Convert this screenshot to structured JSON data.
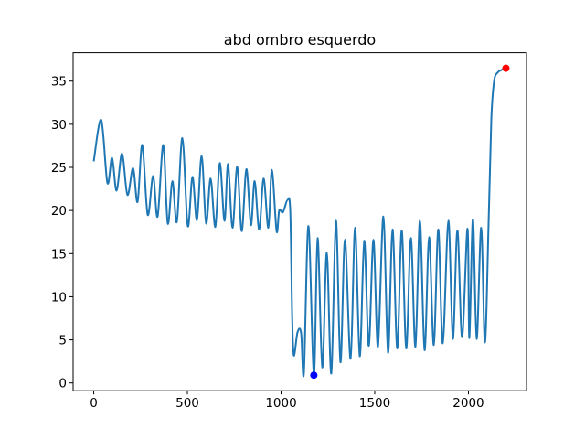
{
  "chart_data": {
    "type": "line",
    "title": "abd ombro esquerdo",
    "x": [
      0,
      40,
      73,
      98,
      122,
      151,
      180,
      210,
      234,
      259,
      288,
      317,
      341,
      371,
      395,
      420,
      444,
      473,
      502,
      527,
      551,
      576,
      600,
      624,
      649,
      673,
      698,
      717,
      741,
      766,
      790,
      815,
      839,
      859,
      883,
      907,
      932,
      951,
      976,
      990,
      1010,
      1034,
      1049,
      1059,
      1068,
      1088,
      1107,
      1122,
      1146,
      1175,
      1195,
      1220,
      1244,
      1268,
      1293,
      1317,
      1341,
      1371,
      1395,
      1420,
      1444,
      1468,
      1493,
      1517,
      1546,
      1571,
      1595,
      1620,
      1644,
      1668,
      1693,
      1717,
      1741,
      1766,
      1790,
      1815,
      1839,
      1863,
      1893,
      1917,
      1941,
      1966,
      1995,
      2005,
      2024,
      2044,
      2068,
      2088,
      2107,
      2122,
      2137,
      2156,
      2176,
      2200
    ],
    "series": [
      {
        "color": "#1f77b4",
        "values": [
          25.7,
          30.5,
          23.2,
          26.1,
          22.3,
          26.6,
          21.8,
          24.9,
          21.0,
          27.6,
          19.5,
          24.0,
          19.3,
          27.6,
          18.5,
          23.4,
          18.7,
          28.4,
          18.2,
          23.9,
          18.9,
          26.3,
          18.5,
          23.7,
          18.1,
          25.5,
          18.8,
          25.4,
          18.0,
          25.1,
          17.6,
          24.8,
          18.3,
          23.4,
          17.8,
          23.7,
          18.0,
          24.7,
          17.6,
          20.0,
          19.8,
          21.2,
          20.0,
          8.0,
          3.2,
          5.9,
          5.8,
          1.2,
          18.2,
          0.9,
          16.8,
          1.8,
          15.1,
          1.1,
          18.8,
          2.4,
          16.6,
          2.8,
          18.0,
          3.1,
          16.5,
          4.3,
          16.6,
          4.2,
          19.3,
          3.5,
          17.8,
          4.0,
          17.7,
          4.0,
          16.8,
          4.2,
          18.8,
          3.8,
          16.9,
          4.4,
          17.8,
          4.6,
          18.8,
          5.1,
          17.7,
          5.3,
          17.9,
          5.2,
          19.0,
          5.1,
          18.0,
          4.7,
          18.0,
          30.5,
          35.0,
          36.0,
          36.3,
          36.5
        ]
      }
    ],
    "markers": [
      {
        "x": 1175,
        "y": 0.9,
        "color": "#0000ff"
      },
      {
        "x": 2200,
        "y": 36.5,
        "color": "#ff0000"
      }
    ],
    "xlim": [
      -110,
      2310
    ],
    "ylim": [
      -0.9,
      38.3
    ],
    "xticks": [
      0,
      500,
      1000,
      1500,
      2000
    ],
    "yticks": [
      0,
      5,
      10,
      15,
      20,
      25,
      30,
      35
    ]
  }
}
